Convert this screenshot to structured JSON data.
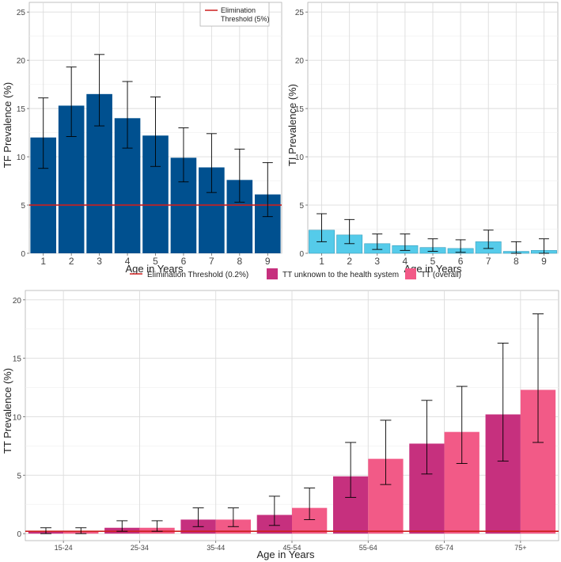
{
  "colors": {
    "tf_bar": "#00508f",
    "ti_bar": "#55cbea",
    "tt_unknown": "#c6307e",
    "tt_overall": "#f25a87",
    "threshold": "#cc1f1f",
    "grid": "#dcdcdc",
    "panel_border": "#b3b3b3",
    "text": "#222222",
    "tick_text": "#444444"
  },
  "chart_data": [
    {
      "id": "tf",
      "type": "bar",
      "xlabel": "Age in Years",
      "ylabel": "TF Prevalence (%)",
      "categories": [
        "1",
        "2",
        "3",
        "4",
        "5",
        "6",
        "7",
        "8",
        "9"
      ],
      "series": [
        {
          "name": "TF",
          "values": [
            12.0,
            15.3,
            16.5,
            14.0,
            12.2,
            9.9,
            8.9,
            7.6,
            6.1
          ],
          "ci_low": [
            8.8,
            12.1,
            13.2,
            10.9,
            9.0,
            7.4,
            6.3,
            5.3,
            3.8
          ],
          "ci_high": [
            16.1,
            19.3,
            20.6,
            17.8,
            16.2,
            13.0,
            12.4,
            10.8,
            9.4
          ]
        }
      ],
      "ylim": [
        0,
        26
      ],
      "yticks": [
        0,
        5,
        10,
        15,
        20,
        25
      ],
      "threshold": {
        "value": 5,
        "label": "Elimination Threshold (5%)"
      },
      "legend": {
        "position": "top-right",
        "line1": "Elimination",
        "line2": "Threshold (5%)"
      }
    },
    {
      "id": "ti",
      "type": "bar",
      "xlabel": "Age in Years",
      "ylabel": "TI Prevalence (%)",
      "categories": [
        "1",
        "2",
        "3",
        "4",
        "5",
        "6",
        "7",
        "8",
        "9"
      ],
      "series": [
        {
          "name": "TI",
          "values": [
            2.4,
            1.9,
            1.0,
            0.8,
            0.6,
            0.5,
            1.2,
            0.2,
            0.3
          ],
          "ci_low": [
            1.2,
            1.0,
            0.4,
            0.3,
            0.2,
            0.1,
            0.5,
            0.0,
            0.0
          ],
          "ci_high": [
            4.1,
            3.5,
            2.0,
            2.0,
            1.5,
            1.4,
            2.4,
            1.2,
            1.5
          ]
        }
      ],
      "ylim": [
        0,
        26
      ],
      "yticks": [
        0,
        5,
        10,
        15,
        20,
        25
      ]
    },
    {
      "id": "tt",
      "type": "bar",
      "xlabel": "Age in Years",
      "ylabel": "TT Prevalence (%)",
      "categories": [
        "15-24",
        "25-34",
        "35-44",
        "45-54",
        "55-64",
        "65-74",
        "75+"
      ],
      "series": [
        {
          "name": "TT unknown to the health system",
          "values": [
            0.2,
            0.5,
            1.2,
            1.6,
            4.9,
            7.7,
            10.2
          ],
          "ci_low": [
            0.0,
            0.2,
            0.6,
            0.7,
            3.1,
            5.1,
            6.2
          ],
          "ci_high": [
            0.5,
            1.1,
            2.2,
            3.2,
            7.8,
            11.4,
            16.3
          ]
        },
        {
          "name": "TT (overall)",
          "values": [
            0.2,
            0.5,
            1.2,
            2.2,
            6.4,
            8.7,
            12.3
          ],
          "ci_low": [
            0.0,
            0.2,
            0.6,
            1.2,
            4.2,
            6.0,
            7.8
          ],
          "ci_high": [
            0.5,
            1.1,
            2.2,
            3.9,
            9.7,
            12.6,
            18.8
          ]
        }
      ],
      "ylim": [
        -0.6,
        20.8
      ],
      "yticks": [
        0,
        5,
        10,
        15,
        20
      ],
      "threshold": {
        "value": 0.2,
        "label": "Elimination Threshold (0.2%)"
      },
      "legend": {
        "position": "top",
        "items": [
          "Elimination Threshold (0.2%)",
          "TT unknown to the health system",
          "TT (overall)"
        ]
      }
    }
  ]
}
